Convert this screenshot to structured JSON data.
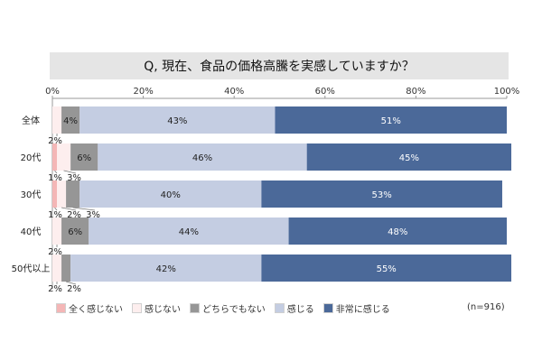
{
  "chart_data": {
    "type": "bar",
    "orientation": "horizontal",
    "stacked": true,
    "title": "Q, 現在、食品の価格高騰を実感していますか？",
    "note": "(n=916)",
    "x_tick_labels": [
      "0%",
      "20%",
      "40%",
      "60%",
      "80%",
      "100%"
    ],
    "xlim": [
      0,
      100
    ],
    "categories": [
      "全体",
      "20代",
      "30代",
      "40代",
      "50代以上"
    ],
    "series": [
      {
        "name": "全く感じない",
        "color": "#f4b6b6",
        "values": [
          0,
          1,
          1,
          0,
          0
        ]
      },
      {
        "name": "感じない",
        "color": "#fdeeee",
        "values": [
          2,
          3,
          2,
          2,
          2
        ]
      },
      {
        "name": "どちらでもない",
        "color": "#969696",
        "values": [
          4,
          6,
          3,
          6,
          2
        ]
      },
      {
        "name": "感じる",
        "color": "#c4cde2",
        "values": [
          43,
          46,
          40,
          44,
          42
        ]
      },
      {
        "name": "非常に感じる",
        "color": "#4b6999",
        "values": [
          51,
          45,
          53,
          48,
          55
        ]
      }
    ],
    "bar_labels": [
      {
        "inside": [
          "",
          "",
          "4%",
          "43%",
          "51%"
        ],
        "below": [
          "2%"
        ]
      },
      {
        "inside": [
          "",
          "",
          "6%",
          "46%",
          "45%"
        ],
        "below": [
          "1%",
          "3%"
        ]
      },
      {
        "inside": [
          "",
          "",
          "",
          "40%",
          "53%"
        ],
        "below": [
          "1%",
          "2%",
          "3%"
        ]
      },
      {
        "inside": [
          "",
          "",
          "6%",
          "44%",
          "48%"
        ],
        "below": [
          "2%"
        ]
      },
      {
        "inside": [
          "",
          "",
          "",
          "42%",
          "55%"
        ],
        "below": [
          "2%",
          "2%"
        ]
      }
    ],
    "legend_position": "bottom-left",
    "grid": false
  }
}
